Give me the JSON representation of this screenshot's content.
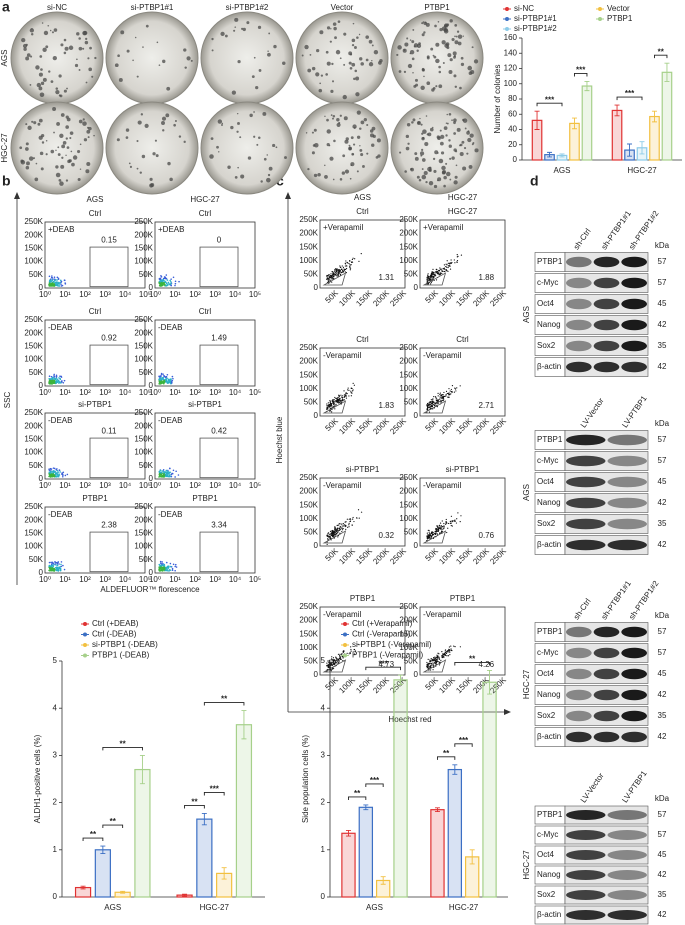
{
  "panel_labels": [
    "a",
    "b",
    "c",
    "d"
  ],
  "colony": {
    "columns": [
      "si-NC",
      "si-PTBP1#1",
      "si-PTBP1#2",
      "Vector",
      "PTBP1"
    ],
    "rows": [
      "AGS",
      "HGC-27"
    ]
  },
  "flow_b": {
    "columns": [
      "AGS",
      "HGC-27"
    ],
    "y_label": "SSC",
    "x_label": "ALDEFLUOR™ florescence",
    "yticks": [
      "0",
      "50K",
      "100K",
      "150K",
      "200K",
      "250K"
    ],
    "xticks": [
      "10⁰",
      "10¹",
      "10²",
      "10³",
      "10⁴",
      "10⁵"
    ],
    "plots": [
      [
        {
          "title": "Ctrl",
          "tag": "+DEAB",
          "gate": 0.15
        },
        {
          "title": "Ctrl",
          "tag": "+DEAB",
          "gate": 0
        }
      ],
      [
        {
          "title": "Ctrl",
          "tag": "-DEAB",
          "gate": 0.92
        },
        {
          "title": "Ctrl",
          "tag": "-DEAB",
          "gate": 1.49
        }
      ],
      [
        {
          "title": "si-PTBP1",
          "tag": "-DEAB",
          "gate": 0.11
        },
        {
          "title": "si-PTBP1",
          "tag": "-DEAB",
          "gate": 0.42
        }
      ],
      [
        {
          "title": "PTBP1",
          "tag": "-DEAB",
          "gate": 2.38
        },
        {
          "title": "PTBP1",
          "tag": "-DEAB",
          "gate": 3.34
        }
      ]
    ]
  },
  "flow_c": {
    "columns": [
      "AGS",
      "HGC-27"
    ],
    "y_label": "Hoechst blue",
    "x_label": "Hoechst red",
    "yticks": [
      "0",
      "50K",
      "100K",
      "150K",
      "200K",
      "250K"
    ],
    "xticks": [
      "50K",
      "100K",
      "150K",
      "200K",
      "250K"
    ],
    "plots": [
      [
        {
          "title": "Ctrl",
          "tag": "+Verapamil",
          "gate": 1.31
        },
        {
          "title": "HGC-27",
          "tag": "+Verapamil",
          "gate": 1.88
        }
      ],
      [
        {
          "title": "Ctrl",
          "tag": "-Verapamil",
          "gate": 1.83
        },
        {
          "title": "Ctrl",
          "tag": "-Verapamil",
          "gate": 2.71
        }
      ],
      [
        {
          "title": "si-PTBP1",
          "tag": "-Verapamil",
          "gate": 0.32
        },
        {
          "title": "si-PTBP1",
          "tag": "-Verapamil",
          "gate": 0.76
        }
      ],
      [
        {
          "title": "PTBP1",
          "tag": "-Verapamil",
          "gate": 4.73
        },
        {
          "title": "PTBP1",
          "tag": "-Verapamil",
          "gate": 4.26
        }
      ]
    ]
  },
  "western": [
    {
      "side": "AGS",
      "unit": "kDa",
      "lanes": [
        "sh-Ctrl",
        "sh-PTBP1#1",
        "sh-PTBP1#2"
      ],
      "rows": [
        {
          "protein": "PTBP1",
          "kda": 57
        },
        {
          "protein": "c-Myc",
          "kda": 57
        },
        {
          "protein": "Oct4",
          "kda": 45
        },
        {
          "protein": "Nanog",
          "kda": 42
        },
        {
          "protein": "Sox2",
          "kda": 35
        },
        {
          "protein": "β-actin",
          "kda": 42
        }
      ]
    },
    {
      "side": "AGS",
      "unit": "kDa",
      "lanes": [
        "LV-Vector",
        "LV-PTBP1"
      ],
      "rows": [
        {
          "protein": "PTBP1",
          "kda": 57
        },
        {
          "protein": "c-Myc",
          "kda": 57
        },
        {
          "protein": "Oct4",
          "kda": 45
        },
        {
          "protein": "Nanog",
          "kda": 42
        },
        {
          "protein": "Sox2",
          "kda": 35
        },
        {
          "protein": "β-actin",
          "kda": 42
        }
      ]
    },
    {
      "side": "HGC-27",
      "unit": "kDa",
      "lanes": [
        "sh-Ctrl",
        "sh-PTBP1#1",
        "sh-PTBP1#2"
      ],
      "rows": [
        {
          "protein": "PTBP1",
          "kda": 57
        },
        {
          "protein": "c-Myc",
          "kda": 57
        },
        {
          "protein": "Oct4",
          "kda": 45
        },
        {
          "protein": "Nanog",
          "kda": 42
        },
        {
          "protein": "Sox2",
          "kda": 35
        },
        {
          "protein": "β-actin",
          "kda": 42
        }
      ]
    },
    {
      "side": "HGC-27",
      "unit": "kDa",
      "lanes": [
        "LV-Vector",
        "LV-PTBP1"
      ],
      "rows": [
        {
          "protein": "PTBP1",
          "kda": 57
        },
        {
          "protein": "c-Myc",
          "kda": 57
        },
        {
          "protein": "Oct4",
          "kda": 45
        },
        {
          "protein": "Nanog",
          "kda": 42
        },
        {
          "protein": "Sox2",
          "kda": 35
        },
        {
          "protein": "β-actin",
          "kda": 42
        }
      ]
    }
  ],
  "chart_data": [
    {
      "type": "bar",
      "y_label": "Number of colonies",
      "categories": [
        "AGS",
        "HGC-27"
      ],
      "ylim": [
        0,
        160
      ],
      "yticks": [
        0,
        20,
        40,
        60,
        80,
        100,
        120,
        140,
        160
      ],
      "legend_columns": 2,
      "series": [
        {
          "name": "si-NC",
          "color": "#e03232",
          "values": [
            52,
            65
          ],
          "errors": [
            12,
            7
          ]
        },
        {
          "name": "si-PTBP1#1",
          "color": "#3b6fc4",
          "values": [
            7,
            13
          ],
          "errors": [
            3,
            8
          ]
        },
        {
          "name": "si-PTBP1#2",
          "color": "#8ccbe8",
          "values": [
            6,
            16
          ],
          "errors": [
            2,
            8
          ]
        },
        {
          "name": "Vector",
          "color": "#f2c040",
          "values": [
            48,
            57
          ],
          "errors": [
            7,
            7
          ]
        },
        {
          "name": "PTBP1",
          "color": "#a6d08a",
          "values": [
            97,
            115
          ],
          "errors": [
            6,
            12
          ]
        }
      ],
      "annotations": [
        {
          "label": "***",
          "at": "AGS",
          "between": [
            "si-NC",
            "si-PTBP1#2"
          ]
        },
        {
          "label": "***",
          "at": "AGS",
          "between": [
            "Vector",
            "PTBP1"
          ]
        },
        {
          "label": "***",
          "at": "HGC-27",
          "between": [
            "si-NC",
            "si-PTBP1#2"
          ]
        },
        {
          "label": "**",
          "at": "HGC-27",
          "between": [
            "Vector",
            "PTBP1"
          ]
        }
      ]
    },
    {
      "type": "bar",
      "y_label": "ALDH1-positive cells (%)",
      "categories": [
        "AGS",
        "HGC-27"
      ],
      "ylim": [
        0,
        5
      ],
      "yticks": [
        0,
        1,
        2,
        3,
        4,
        5
      ],
      "legend_columns": 1,
      "series": [
        {
          "name": "Ctrl (+DEAB)",
          "color": "#e03232",
          "values": [
            0.2,
            0.04
          ],
          "errors": [
            0.03,
            0.02
          ]
        },
        {
          "name": "Ctrl (-DEAB)",
          "color": "#3b6fc4",
          "values": [
            1.0,
            1.65
          ],
          "errors": [
            0.08,
            0.12
          ]
        },
        {
          "name": "si-PTBP1 (-DEAB)",
          "color": "#f2c040",
          "values": [
            0.1,
            0.5
          ],
          "errors": [
            0.02,
            0.12
          ]
        },
        {
          "name": "PTBP1 (-DEAB)",
          "color": "#a6d08a",
          "values": [
            2.7,
            3.65
          ],
          "errors": [
            0.3,
            0.3
          ]
        }
      ],
      "annotations": [
        {
          "label": "**",
          "at": "AGS",
          "between": [
            "Ctrl (+DEAB)",
            "Ctrl (-DEAB)"
          ]
        },
        {
          "label": "**",
          "at": "AGS",
          "between": [
            "Ctrl (-DEAB)",
            "si-PTBP1 (-DEAB)"
          ]
        },
        {
          "label": "**",
          "at": "AGS",
          "between": [
            "Ctrl (-DEAB)",
            "PTBP1 (-DEAB)"
          ]
        },
        {
          "label": "**",
          "at": "HGC-27",
          "between": [
            "Ctrl (+DEAB)",
            "Ctrl (-DEAB)"
          ]
        },
        {
          "label": "***",
          "at": "HGC-27",
          "between": [
            "Ctrl (-DEAB)",
            "si-PTBP1 (-DEAB)"
          ]
        },
        {
          "label": "**",
          "at": "HGC-27",
          "between": [
            "Ctrl (-DEAB)",
            "PTBP1 (-DEAB)"
          ]
        }
      ]
    },
    {
      "type": "bar",
      "y_label": "Side population cells (%)",
      "categories": [
        "AGS",
        "HGC-27"
      ],
      "ylim": [
        0,
        5
      ],
      "yticks": [
        0,
        1,
        2,
        3,
        4,
        5
      ],
      "legend_columns": 1,
      "series": [
        {
          "name": "Ctrl (+Verapamil)",
          "color": "#e03232",
          "values": [
            1.35,
            1.85
          ],
          "errors": [
            0.06,
            0.04
          ]
        },
        {
          "name": "Ctrl (-Verapamil)",
          "color": "#3b6fc4",
          "values": [
            1.9,
            2.7
          ],
          "errors": [
            0.05,
            0.1
          ]
        },
        {
          "name": "si-PTBP1 (-Verapamil)",
          "color": "#f2c040",
          "values": [
            0.35,
            0.85
          ],
          "errors": [
            0.08,
            0.15
          ]
        },
        {
          "name": "PTBP1 (-Verapamil)",
          "color": "#a6d08a",
          "values": [
            4.6,
            4.55
          ],
          "errors": [
            0.1,
            0.25
          ]
        }
      ],
      "annotations": [
        {
          "label": "**",
          "at": "AGS",
          "between": [
            "Ctrl (+Verapamil)",
            "Ctrl (-Verapamil)"
          ]
        },
        {
          "label": "***",
          "at": "AGS",
          "between": [
            "Ctrl (-Verapamil)",
            "si-PTBP1 (-Verapamil)"
          ]
        },
        {
          "label": "***",
          "at": "AGS",
          "between": [
            "Ctrl (-Verapamil)",
            "PTBP1 (-Verapamil)"
          ]
        },
        {
          "label": "**",
          "at": "HGC-27",
          "between": [
            "Ctrl (+Verapamil)",
            "Ctrl (-Verapamil)"
          ]
        },
        {
          "label": "***",
          "at": "HGC-27",
          "between": [
            "Ctrl (-Verapamil)",
            "si-PTBP1 (-Verapamil)"
          ]
        },
        {
          "label": "**",
          "at": "HGC-27",
          "between": [
            "Ctrl (-Verapamil)",
            "PTBP1 (-Verapamil)"
          ]
        }
      ]
    }
  ]
}
